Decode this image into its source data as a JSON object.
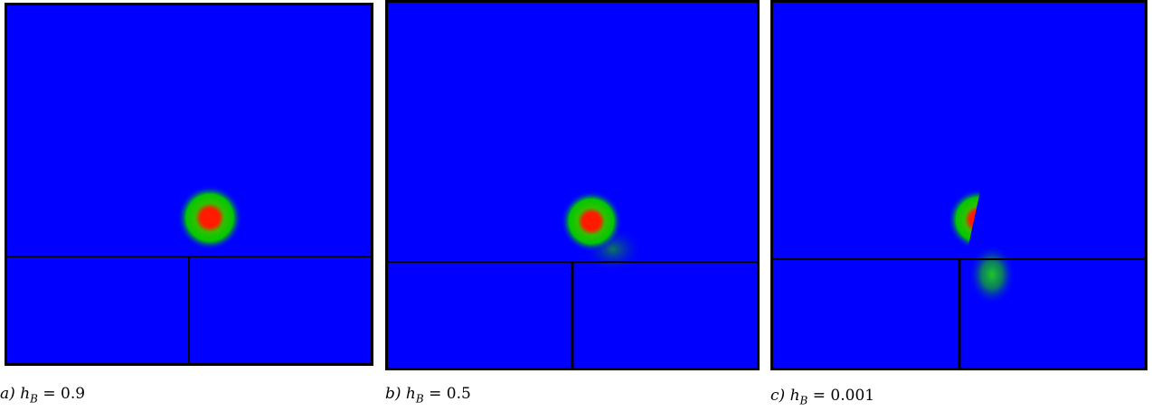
{
  "figure": {
    "colors": {
      "background": "#0000ff",
      "mid": "#00d000",
      "core": "#ff1a00",
      "border": "#000000"
    },
    "panels": [
      {
        "letter": "a)",
        "symbol": "h",
        "subscript": "B",
        "relation": "=",
        "value": "0.9"
      },
      {
        "letter": "b)",
        "symbol": "h",
        "subscript": "B",
        "relation": "=",
        "value": "0.5"
      },
      {
        "letter": "c)",
        "symbol": "h",
        "subscript": "B",
        "relation": "=",
        "value": "0.001"
      }
    ]
  }
}
